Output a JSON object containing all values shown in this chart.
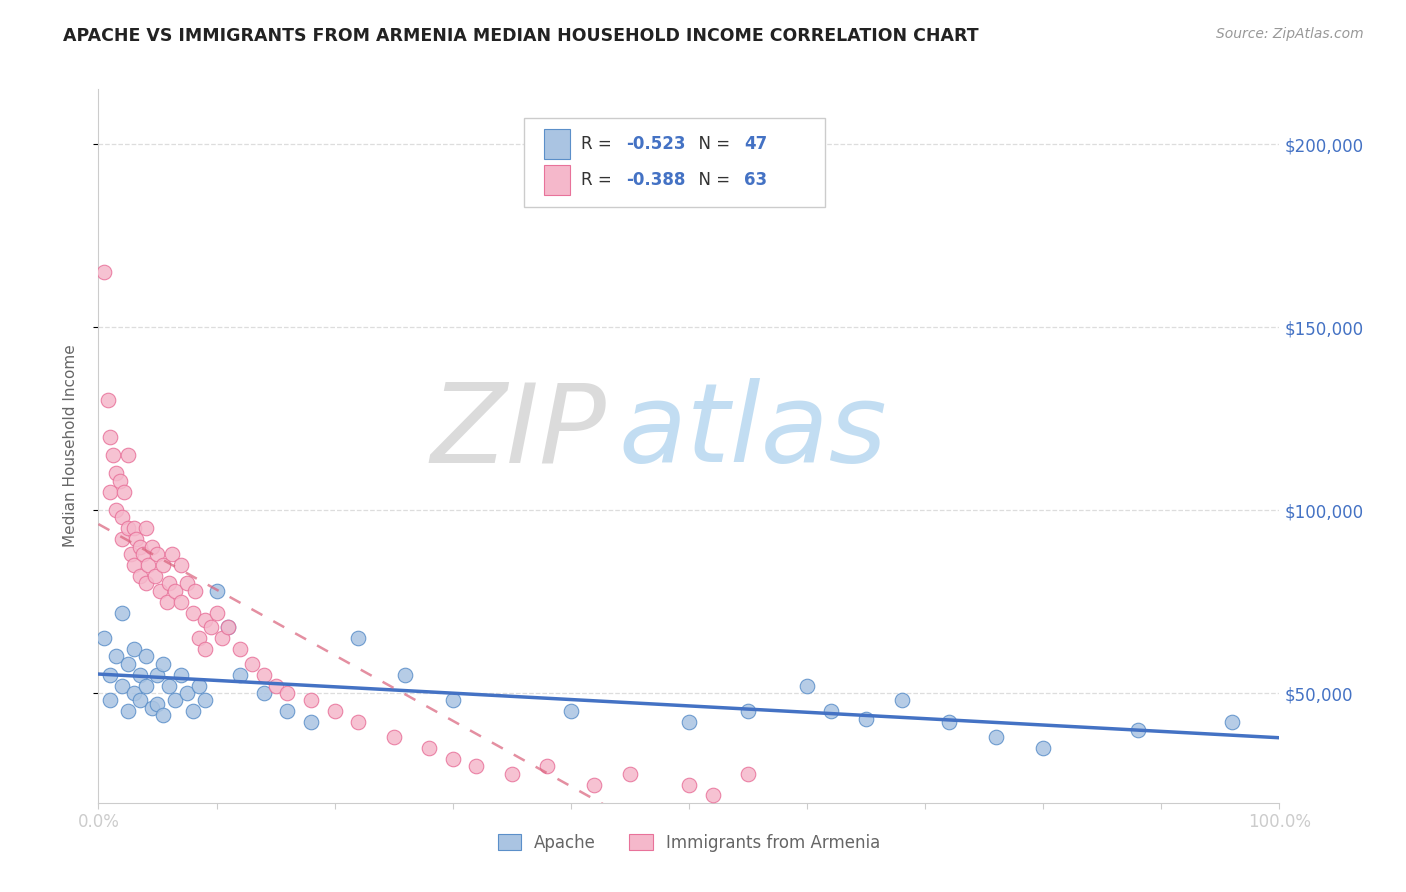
{
  "title": "APACHE VS IMMIGRANTS FROM ARMENIA MEDIAN HOUSEHOLD INCOME CORRELATION CHART",
  "source": "Source: ZipAtlas.com",
  "ylabel": "Median Household Income",
  "watermark_ZIP": "ZIP",
  "watermark_atlas": "atlas",
  "xlim": [
    0.0,
    1.0
  ],
  "ylim": [
    20000,
    215000
  ],
  "yticks": [
    50000,
    100000,
    150000,
    200000
  ],
  "ytick_labels": [
    "$50,000",
    "$100,000",
    "$150,000",
    "$200,000"
  ],
  "legend1_R": "-0.523",
  "legend1_N": "47",
  "legend2_R": "-0.388",
  "legend2_N": "63",
  "apache_color": "#aac4e2",
  "armenia_color": "#f5b8cb",
  "apache_edge_color": "#5b8fc9",
  "armenia_edge_color": "#e8729a",
  "apache_line_color": "#4472c4",
  "armenia_line_color": "#d9607a",
  "text_color": "#4472c4",
  "label_color": "#666666",
  "grid_color": "#dddddd",
  "spine_color": "#cccccc",
  "apache_x": [
    0.005,
    0.01,
    0.01,
    0.015,
    0.02,
    0.02,
    0.025,
    0.025,
    0.03,
    0.03,
    0.035,
    0.035,
    0.04,
    0.04,
    0.045,
    0.05,
    0.05,
    0.055,
    0.055,
    0.06,
    0.065,
    0.07,
    0.075,
    0.08,
    0.085,
    0.09,
    0.1,
    0.11,
    0.12,
    0.14,
    0.16,
    0.18,
    0.22,
    0.26,
    0.3,
    0.4,
    0.5,
    0.55,
    0.6,
    0.62,
    0.65,
    0.68,
    0.72,
    0.76,
    0.8,
    0.88,
    0.96
  ],
  "apache_y": [
    65000,
    55000,
    48000,
    60000,
    72000,
    52000,
    58000,
    45000,
    62000,
    50000,
    55000,
    48000,
    60000,
    52000,
    46000,
    55000,
    47000,
    58000,
    44000,
    52000,
    48000,
    55000,
    50000,
    45000,
    52000,
    48000,
    78000,
    68000,
    55000,
    50000,
    45000,
    42000,
    65000,
    55000,
    48000,
    45000,
    42000,
    45000,
    52000,
    45000,
    43000,
    48000,
    42000,
    38000,
    35000,
    40000,
    42000
  ],
  "armenia_x": [
    0.005,
    0.008,
    0.01,
    0.01,
    0.012,
    0.015,
    0.015,
    0.018,
    0.02,
    0.02,
    0.022,
    0.025,
    0.025,
    0.028,
    0.03,
    0.03,
    0.032,
    0.035,
    0.035,
    0.038,
    0.04,
    0.04,
    0.042,
    0.045,
    0.048,
    0.05,
    0.052,
    0.055,
    0.058,
    0.06,
    0.062,
    0.065,
    0.07,
    0.07,
    0.075,
    0.08,
    0.082,
    0.085,
    0.09,
    0.09,
    0.095,
    0.1,
    0.105,
    0.11,
    0.12,
    0.13,
    0.14,
    0.15,
    0.16,
    0.18,
    0.2,
    0.22,
    0.25,
    0.28,
    0.3,
    0.32,
    0.35,
    0.38,
    0.42,
    0.45,
    0.5,
    0.52,
    0.55
  ],
  "armenia_y": [
    165000,
    130000,
    120000,
    105000,
    115000,
    110000,
    100000,
    108000,
    98000,
    92000,
    105000,
    115000,
    95000,
    88000,
    95000,
    85000,
    92000,
    90000,
    82000,
    88000,
    95000,
    80000,
    85000,
    90000,
    82000,
    88000,
    78000,
    85000,
    75000,
    80000,
    88000,
    78000,
    75000,
    85000,
    80000,
    72000,
    78000,
    65000,
    70000,
    62000,
    68000,
    72000,
    65000,
    68000,
    62000,
    58000,
    55000,
    52000,
    50000,
    48000,
    45000,
    42000,
    38000,
    35000,
    32000,
    30000,
    28000,
    30000,
    25000,
    28000,
    25000,
    22000,
    28000
  ]
}
